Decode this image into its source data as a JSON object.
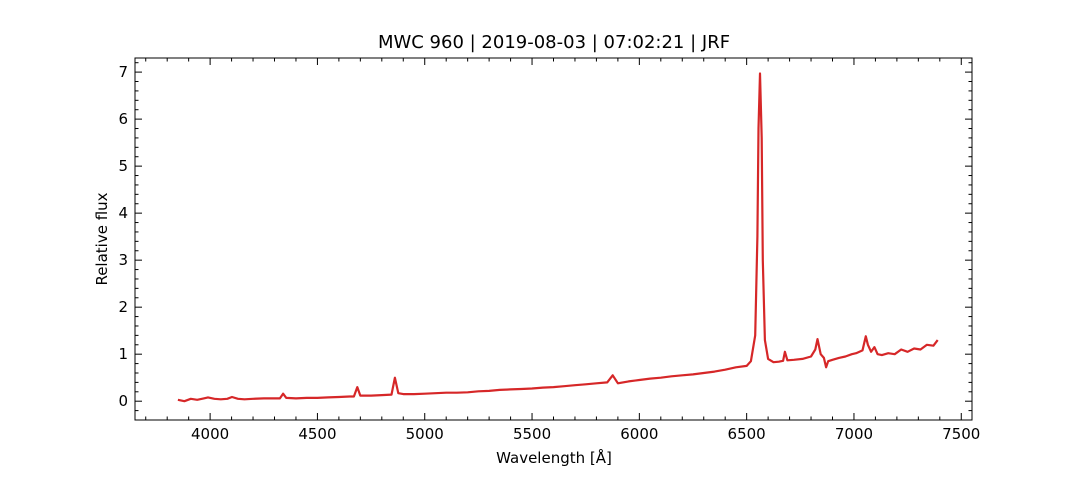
{
  "chart_data": {
    "type": "line",
    "title": "MWC 960 | 2019-08-03 | 07:02:21 | JRF",
    "xlabel": "Wavelength [Å]",
    "ylabel": "Relative flux",
    "xlim": [
      3650,
      7550
    ],
    "ylim": [
      -0.4,
      7.3
    ],
    "xticks": [
      4000,
      4500,
      5000,
      5500,
      6000,
      6500,
      7000,
      7500
    ],
    "yticks": [
      0,
      1,
      2,
      3,
      4,
      5,
      6,
      7
    ],
    "grid": false,
    "series": [
      {
        "color": "#d62728",
        "x": [
          3850,
          3880,
          3910,
          3940,
          3970,
          3990,
          4020,
          4050,
          4080,
          4102,
          4130,
          4160,
          4200,
          4250,
          4300,
          4325,
          4340,
          4355,
          4400,
          4450,
          4500,
          4550,
          4600,
          4650,
          4670,
          4686,
          4700,
          4750,
          4800,
          4845,
          4861,
          4877,
          4900,
          4950,
          5000,
          5050,
          5100,
          5150,
          5200,
          5250,
          5300,
          5350,
          5400,
          5450,
          5500,
          5550,
          5600,
          5650,
          5700,
          5750,
          5800,
          5850,
          5876,
          5900,
          5950,
          6000,
          6050,
          6100,
          6150,
          6200,
          6250,
          6300,
          6350,
          6400,
          6450,
          6500,
          6520,
          6540,
          6550,
          6555,
          6562,
          6570,
          6575,
          6585,
          6600,
          6625,
          6650,
          6670,
          6678,
          6690,
          6720,
          6760,
          6800,
          6820,
          6830,
          6845,
          6860,
          6870,
          6880,
          6900,
          6930,
          6960,
          6990,
          7010,
          7040,
          7055,
          7065,
          7080,
          7095,
          7110,
          7130,
          7160,
          7190,
          7220,
          7250,
          7280,
          7310,
          7340,
          7370,
          7390
        ],
        "y": [
          0.03,
          0.0,
          0.05,
          0.03,
          0.06,
          0.08,
          0.05,
          0.04,
          0.05,
          0.09,
          0.05,
          0.04,
          0.05,
          0.06,
          0.06,
          0.06,
          0.16,
          0.07,
          0.06,
          0.07,
          0.07,
          0.08,
          0.09,
          0.1,
          0.1,
          0.3,
          0.12,
          0.12,
          0.13,
          0.14,
          0.5,
          0.17,
          0.15,
          0.15,
          0.16,
          0.17,
          0.18,
          0.18,
          0.19,
          0.21,
          0.22,
          0.24,
          0.25,
          0.26,
          0.27,
          0.29,
          0.3,
          0.32,
          0.34,
          0.36,
          0.38,
          0.4,
          0.55,
          0.38,
          0.42,
          0.45,
          0.48,
          0.5,
          0.53,
          0.55,
          0.57,
          0.6,
          0.63,
          0.67,
          0.72,
          0.75,
          0.85,
          1.4,
          3.5,
          5.8,
          6.97,
          5.6,
          3.0,
          1.3,
          0.9,
          0.83,
          0.84,
          0.86,
          1.05,
          0.87,
          0.88,
          0.9,
          0.95,
          1.1,
          1.32,
          1.0,
          0.92,
          0.72,
          0.85,
          0.88,
          0.92,
          0.95,
          1.0,
          1.02,
          1.08,
          1.38,
          1.2,
          1.05,
          1.15,
          1.0,
          0.98,
          1.02,
          1.0,
          1.1,
          1.05,
          1.12,
          1.1,
          1.2,
          1.18,
          1.3
        ]
      }
    ]
  }
}
